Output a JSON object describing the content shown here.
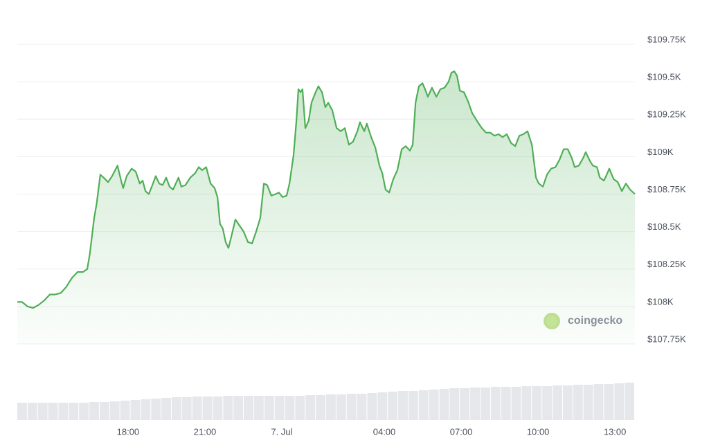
{
  "chart_data": {
    "type": "line",
    "series": [
      {
        "color": "#4fae56",
        "x": [
          -10.32,
          -10.14,
          -9.92,
          -9.7,
          -9.49,
          -9.27,
          -9.05,
          -8.84,
          -8.62,
          -8.41,
          -8.19,
          -7.97,
          -7.76,
          -7.59,
          -7.49,
          -7.32,
          -7.22,
          -7.08,
          -6.95,
          -6.78,
          -6.62,
          -6.41,
          -6.27,
          -6.19,
          -6.05,
          -5.86,
          -5.7,
          -5.54,
          -5.43,
          -5.32,
          -5.19,
          -5.05,
          -4.92,
          -4.78,
          -4.65,
          -4.51,
          -4.38,
          -4.24,
          -4.03,
          -3.92,
          -3.76,
          -3.57,
          -3.38,
          -3.24,
          -3.11,
          -2.95,
          -2.78,
          -2.62,
          -2.51,
          -2.41,
          -2.3,
          -2.19,
          -2.08,
          -1.95,
          -1.81,
          -1.65,
          -1.49,
          -1.32,
          -1.16,
          -1.0,
          -0.84,
          -0.7,
          -0.57,
          -0.41,
          -0.24,
          -0.11,
          0.03,
          0.19,
          0.3,
          0.46,
          0.57,
          0.65,
          0.73,
          0.81,
          0.92,
          1.05,
          1.16,
          1.32,
          1.43,
          1.57,
          1.7,
          1.81,
          1.97,
          2.14,
          2.3,
          2.46,
          2.62,
          2.78,
          2.95,
          3.05,
          3.22,
          3.32,
          3.49,
          3.65,
          3.81,
          3.92,
          4.05,
          4.19,
          4.35,
          4.51,
          4.68,
          4.84,
          5.0,
          5.11,
          5.22,
          5.35,
          5.49,
          5.59,
          5.7,
          5.86,
          6.03,
          6.19,
          6.35,
          6.51,
          6.62,
          6.73,
          6.84,
          6.95,
          7.11,
          7.27,
          7.43,
          7.65,
          7.81,
          7.97,
          8.14,
          8.3,
          8.46,
          8.62,
          8.78,
          8.95,
          9.11,
          9.27,
          9.43,
          9.59,
          9.76,
          9.92,
          10.03,
          10.19,
          10.35,
          10.51,
          10.68,
          10.84,
          11.0,
          11.16,
          11.32,
          11.43,
          11.59,
          11.76,
          11.86,
          12.03,
          12.14,
          12.3,
          12.41,
          12.57,
          12.68,
          12.78,
          12.95,
          13.11,
          13.27,
          13.43,
          13.59,
          13.78
        ],
        "values": [
          108030,
          108030,
          108000,
          107990,
          108010,
          108040,
          108080,
          108080,
          108090,
          108130,
          108190,
          108230,
          108230,
          108250,
          108350,
          108590,
          108690,
          108880,
          108860,
          108830,
          108870,
          108940,
          108840,
          108790,
          108870,
          108920,
          108900,
          108820,
          108840,
          108770,
          108750,
          108810,
          108870,
          108820,
          108810,
          108860,
          108800,
          108780,
          108860,
          108800,
          108810,
          108860,
          108890,
          108930,
          108910,
          108930,
          108820,
          108790,
          108730,
          108550,
          108520,
          108430,
          108390,
          108480,
          108580,
          108540,
          108500,
          108430,
          108420,
          108500,
          108590,
          108820,
          108810,
          108740,
          108750,
          108760,
          108730,
          108740,
          108820,
          109010,
          109240,
          109450,
          109430,
          109450,
          109190,
          109240,
          109360,
          109430,
          109470,
          109430,
          109330,
          109360,
          109310,
          109190,
          109170,
          109190,
          109080,
          109100,
          109170,
          109230,
          109170,
          109220,
          109130,
          109060,
          108940,
          108890,
          108780,
          108760,
          108850,
          108910,
          109050,
          109070,
          109040,
          109080,
          109360,
          109470,
          109490,
          109450,
          109400,
          109460,
          109400,
          109450,
          109460,
          109500,
          109560,
          109570,
          109540,
          109440,
          109430,
          109370,
          109290,
          109230,
          109190,
          109160,
          109160,
          109140,
          109150,
          109130,
          109150,
          109090,
          109070,
          109140,
          109150,
          109170,
          109080,
          108860,
          108820,
          108800,
          108880,
          108920,
          108930,
          108980,
          109050,
          109050,
          108990,
          108930,
          108940,
          108990,
          109030,
          108970,
          108940,
          108930,
          108860,
          108840,
          108880,
          108920,
          108850,
          108830,
          108770,
          108820,
          108780,
          108750
        ]
      }
    ],
    "volume": {
      "color": "#e6e7ea",
      "ylim": [
        0,
        60
      ],
      "values": [
        25,
        25,
        25,
        25,
        25,
        25,
        25,
        26,
        26,
        27,
        28,
        29,
        30,
        31,
        32,
        33,
        33,
        34,
        34,
        34,
        35,
        35,
        35,
        35,
        35,
        35,
        35,
        35,
        36,
        36,
        37,
        37,
        38,
        38,
        39,
        40,
        41,
        42,
        42,
        43,
        44,
        45,
        46,
        46,
        47,
        47,
        48,
        48,
        48,
        49,
        49,
        49,
        50,
        50,
        51,
        51,
        52,
        52,
        53,
        54
      ]
    },
    "xlim": [
      -10.32,
      13.78
    ],
    "xticks": [
      {
        "value": -6,
        "label": "18:00"
      },
      {
        "value": -3,
        "label": "21:00"
      },
      {
        "value": 0,
        "label": "7. Jul"
      },
      {
        "value": 4,
        "label": "04:00"
      },
      {
        "value": 7,
        "label": "07:00"
      },
      {
        "value": 10,
        "label": "10:00"
      },
      {
        "value": 13,
        "label": "13:00"
      }
    ],
    "ylim": [
      107750,
      109750
    ],
    "yticks": [
      {
        "value": 107750,
        "label": "$107.75K"
      },
      {
        "value": 108000,
        "label": "$108K"
      },
      {
        "value": 108250,
        "label": "$108.25K"
      },
      {
        "value": 108500,
        "label": "$108.5K"
      },
      {
        "value": 108750,
        "label": "$108.75K"
      },
      {
        "value": 109000,
        "label": "$109K"
      },
      {
        "value": 109250,
        "label": "$109.25K"
      },
      {
        "value": 109500,
        "label": "$109.5K"
      },
      {
        "value": 109750,
        "label": "$109.75K"
      }
    ],
    "grid": true,
    "watermark": "coingecko"
  }
}
